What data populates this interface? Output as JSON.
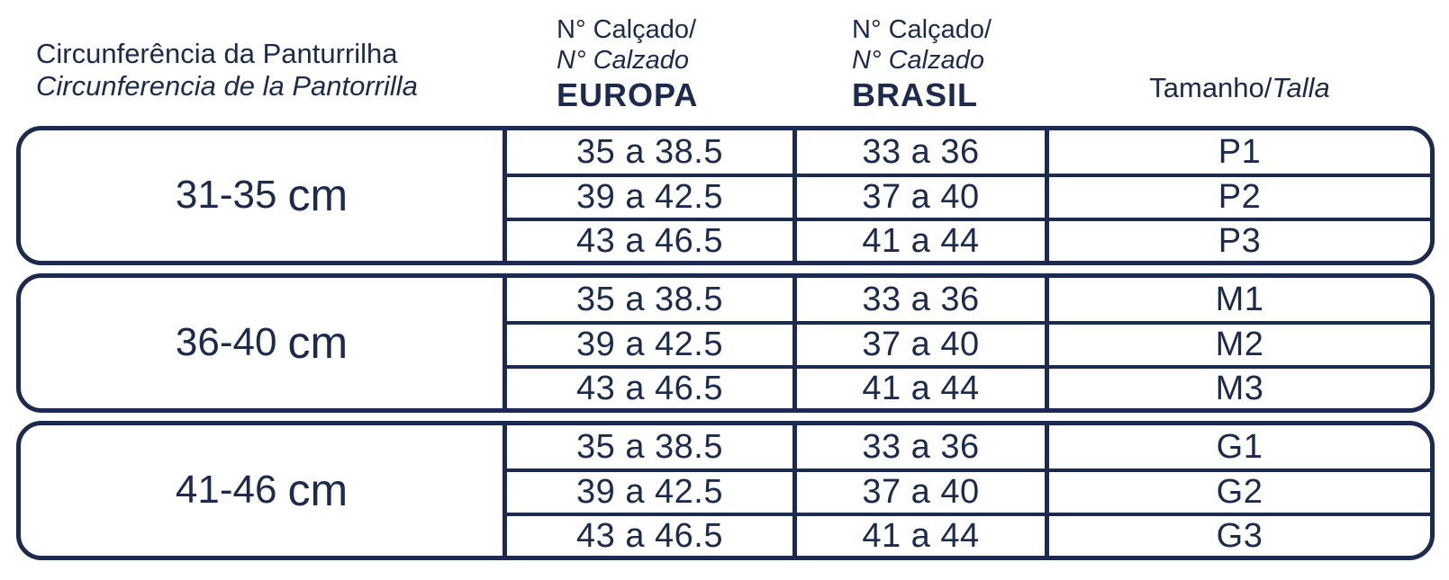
{
  "header": {
    "col1_pt": "Circunferência da Panturrilha",
    "col1_es": "Circunferencia de la Pantorrilla",
    "shoe_pt": "N° Calçado/",
    "shoe_es": "N° Calzado",
    "region_europa": "EUROPA",
    "region_brasil": "BRASIL",
    "size_pt": "Tamanho/",
    "size_es": "Talla"
  },
  "groups": [
    {
      "circumference": "31-35",
      "unit": "cm",
      "rows": [
        {
          "europa": "35 a 38.5",
          "brasil": "33 a 36",
          "size": "P1"
        },
        {
          "europa": "39 a 42.5",
          "brasil": "37 a 40",
          "size": "P2"
        },
        {
          "europa": "43 a 46.5",
          "brasil": "41 a 44",
          "size": "P3"
        }
      ]
    },
    {
      "circumference": "36-40",
      "unit": "cm",
      "rows": [
        {
          "europa": "35 a 38.5",
          "brasil": "33 a 36",
          "size": "M1"
        },
        {
          "europa": "39 a 42.5",
          "brasil": "37 a 40",
          "size": "M2"
        },
        {
          "europa": "43 a 46.5",
          "brasil": "41 a 44",
          "size": "M3"
        }
      ]
    },
    {
      "circumference": "41-46",
      "unit": "cm",
      "rows": [
        {
          "europa": "35 a 38.5",
          "brasil": "33 a 36",
          "size": "G1"
        },
        {
          "europa": "39 a 42.5",
          "brasil": "37 a 40",
          "size": "G2"
        },
        {
          "europa": "43 a 46.5",
          "brasil": "41 a 44",
          "size": "G3"
        }
      ]
    }
  ],
  "colors": {
    "navy": "#1b2a4e",
    "background": "#ffffff"
  },
  "chart_data": {
    "type": "table",
    "title": "Size chart — calf circumference vs shoe number vs size",
    "columns": [
      "Circunferência da Panturrilha / Circunferencia de la Pantorrilla",
      "N° Calçado / N° Calzado EUROPA",
      "N° Calçado / N° Calzado BRASIL",
      "Tamanho / Talla"
    ],
    "rows": [
      [
        "31-35 cm",
        "35 a 38.5",
        "33 a 36",
        "P1"
      ],
      [
        "31-35 cm",
        "39 a 42.5",
        "37 a 40",
        "P2"
      ],
      [
        "31-35 cm",
        "43 a 46.5",
        "41 a 44",
        "P3"
      ],
      [
        "36-40 cm",
        "35 a 38.5",
        "33 a 36",
        "M1"
      ],
      [
        "36-40 cm",
        "39 a 42.5",
        "37 a 40",
        "M2"
      ],
      [
        "36-40 cm",
        "43 a 46.5",
        "41 a 44",
        "M3"
      ],
      [
        "41-46 cm",
        "35 a 38.5",
        "33 a 36",
        "G1"
      ],
      [
        "41-46 cm",
        "39 a 42.5",
        "37 a 40",
        "G2"
      ],
      [
        "41-46 cm",
        "43 a 46.5",
        "41 a 44",
        "G3"
      ]
    ]
  }
}
